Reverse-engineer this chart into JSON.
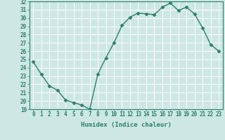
{
  "x": [
    0,
    1,
    2,
    3,
    4,
    5,
    6,
    7,
    8,
    9,
    10,
    11,
    12,
    13,
    14,
    15,
    16,
    17,
    18,
    19,
    20,
    21,
    22,
    23
  ],
  "y": [
    24.7,
    23.2,
    21.8,
    21.3,
    20.1,
    19.8,
    19.5,
    19.0,
    23.2,
    25.2,
    27.0,
    29.1,
    30.1,
    30.6,
    30.5,
    30.4,
    31.3,
    31.8,
    30.9,
    31.3,
    30.5,
    28.8,
    26.8,
    26.0
  ],
  "line_color": "#2e7d6e",
  "marker": "D",
  "markersize": 2.5,
  "bg_color": "#cde8e4",
  "grid_color": "#b0d8d4",
  "xlabel": "Humidex (Indice chaleur)",
  "xlim": [
    -0.5,
    23.5
  ],
  "ylim": [
    19,
    32
  ],
  "yticks": [
    19,
    20,
    21,
    22,
    23,
    24,
    25,
    26,
    27,
    28,
    29,
    30,
    31,
    32
  ],
  "xtick_labels": [
    "0",
    "1",
    "2",
    "3",
    "4",
    "5",
    "6",
    "7",
    "8",
    "9",
    "10",
    "11",
    "12",
    "13",
    "14",
    "15",
    "16",
    "17",
    "18",
    "19",
    "20",
    "21",
    "22",
    "23"
  ],
  "tick_color": "#2e7d6e",
  "label_color": "#2e7d6e",
  "xlabel_fontsize": 6.5,
  "tick_fontsize": 5.5,
  "linewidth": 1.0
}
